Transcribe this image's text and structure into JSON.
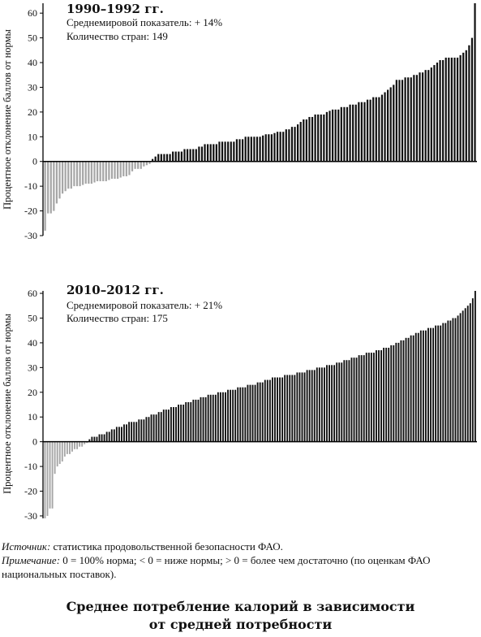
{
  "chart_data": [
    {
      "type": "bar",
      "title": "1990–1992 гг.",
      "subtitle_lines": [
        "Среднемировой показатель: + 14%",
        "Количество стран: 149"
      ],
      "ylabel": "Процентное отклонение баллов от нормы",
      "xlabel": "",
      "ylim": [
        -30,
        64
      ],
      "yticks": [
        -30,
        -20,
        -10,
        0,
        10,
        20,
        30,
        40,
        50,
        60
      ],
      "grid": false,
      "count": 149,
      "values": [
        -28,
        -21,
        -21,
        -20,
        -17,
        -15,
        -13,
        -12,
        -11,
        -11,
        -10,
        -10,
        -10,
        -9.5,
        -9,
        -9,
        -9,
        -8.5,
        -8,
        -8,
        -8,
        -8,
        -7.5,
        -7,
        -7,
        -7,
        -6.5,
        -6,
        -6,
        -5.5,
        -4,
        -3,
        -3,
        -3,
        -2,
        -1.5,
        -1,
        1,
        2,
        3,
        3,
        3,
        3,
        3,
        4,
        4,
        4,
        4,
        5,
        5,
        5,
        5,
        5,
        6,
        6,
        7,
        7,
        7,
        7,
        7,
        8,
        8,
        8,
        8,
        8,
        8,
        9,
        9,
        9,
        10,
        10,
        10,
        10,
        10,
        10,
        10.5,
        11,
        11,
        11,
        11.5,
        12,
        12,
        12,
        13,
        13,
        14,
        14,
        15,
        16,
        17,
        17,
        18,
        18,
        19,
        19,
        19,
        19,
        20,
        20.5,
        21,
        21,
        21,
        22,
        22,
        22,
        23,
        23,
        23,
        24,
        24,
        24,
        25,
        25,
        26,
        26,
        26,
        27,
        28,
        29,
        30,
        31,
        33,
        33,
        33,
        34,
        34,
        34,
        35,
        35,
        36,
        36,
        37,
        37,
        38,
        39,
        40,
        41,
        41,
        42,
        42,
        42,
        42,
        42,
        43,
        44,
        45,
        47,
        50,
        64
      ]
    },
    {
      "type": "bar",
      "title": "2010–2012 гг.",
      "subtitle_lines": [
        "Среднемировой показатель: + 21%",
        "Количество стран: 175"
      ],
      "ylabel": "Процентное отклонение баллов от нормы",
      "xlabel": "",
      "ylim": [
        -31,
        61
      ],
      "yticks": [
        -30,
        -20,
        -10,
        0,
        10,
        20,
        30,
        40,
        50,
        60
      ],
      "grid": false,
      "count": 175,
      "values": [
        -31,
        -30,
        -27,
        -27,
        -13,
        -10,
        -9,
        -8,
        -6,
        -5,
        -5,
        -4,
        -3,
        -3,
        -2,
        -2,
        -1,
        -0.5,
        1,
        2,
        2,
        2,
        3,
        3,
        3,
        4,
        4,
        5,
        5,
        6,
        6,
        6,
        7,
        7,
        8,
        8,
        8,
        8,
        9,
        9,
        9,
        10,
        10,
        11,
        11,
        11,
        12,
        12,
        13,
        13,
        13,
        14,
        14,
        14,
        15,
        15,
        15,
        16,
        16,
        16,
        17,
        17,
        17,
        18,
        18,
        18,
        19,
        19,
        19,
        19,
        20,
        20,
        20,
        20,
        21,
        21,
        21,
        21,
        22,
        22,
        22,
        22,
        23,
        23,
        23,
        23,
        24,
        24,
        24,
        25,
        25,
        25,
        26,
        26,
        26,
        26,
        26,
        27,
        27,
        27,
        27,
        27,
        28,
        28,
        28,
        28,
        29,
        29,
        29,
        29,
        30,
        30,
        30,
        30,
        31,
        31,
        31,
        31,
        32,
        32,
        32,
        33,
        33,
        33,
        34,
        34,
        34,
        35,
        35,
        35,
        36,
        36,
        36,
        36,
        37,
        37,
        37,
        38,
        38,
        38,
        39,
        39,
        40,
        40,
        41,
        41,
        42,
        42,
        43,
        43,
        44,
        44,
        45,
        45,
        45,
        46,
        46,
        46,
        47,
        47,
        47,
        48,
        48,
        49,
        49,
        50,
        50,
        51,
        52,
        53,
        54,
        55,
        56,
        58,
        61
      ]
    }
  ],
  "colors": {
    "positive_bar": "#111111",
    "negative_bar": "#a6a6a6",
    "axis": "#000000"
  },
  "notes": {
    "source_label": "Источник:",
    "source_text": " статистика продовольственной безопасности ФАО.",
    "note_label": "Примечание:",
    "note_text": " 0 = 100% норма; < 0 = ниже нормы; > 0 = более чем достаточно (по оценкам ФАО национальных поставок)."
  },
  "caption": {
    "line1": "Среднее потребление калорий в зависимости",
    "line2": "от средней потребности"
  }
}
